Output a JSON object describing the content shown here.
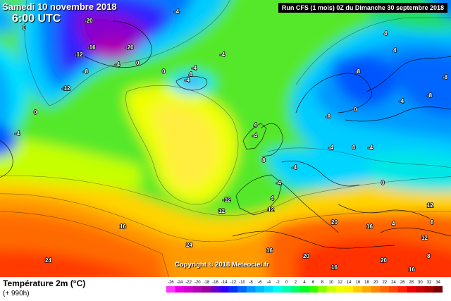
{
  "header": {
    "date": "Samedi 10 novembre 2018",
    "time": "6:00 UTC",
    "run_info": "Run CFS (1 mois) 0Z du Dimanche 30 septembre 2018"
  },
  "copyright": "Copyright © 2018 Meteociel.fr",
  "footer": {
    "title": "Température 2m (°C)",
    "subtitle": "(+ 990h)"
  },
  "legend": {
    "ticks": [
      "-26",
      "-24",
      "-22",
      "-20",
      "-18",
      "-16",
      "-14",
      "-12",
      "-10",
      "-8",
      "-6",
      "-4",
      "-2",
      "0",
      "2",
      "4",
      "6",
      "8",
      "10",
      "12",
      "14",
      "16",
      "18",
      "20",
      "22",
      "24",
      "26",
      "28",
      "30",
      "32",
      "34"
    ],
    "colors": [
      "#ff33ff",
      "#e600e6",
      "#cc00cc",
      "#b300b3",
      "#990099",
      "#6600cc",
      "#3300ff",
      "#0033ff",
      "#0066ff",
      "#0099ff",
      "#00bbff",
      "#00ddff",
      "#00ffee",
      "#00ffaa",
      "#00ff66",
      "#00ff22",
      "#33ff00",
      "#88ff00",
      "#ccff00",
      "#eeff00",
      "#ffee00",
      "#ffcc00",
      "#ffaa00",
      "#ff8800",
      "#ff6600",
      "#ff4400",
      "#ff2200",
      "#ee0000",
      "#cc0000",
      "#aa0000",
      "#770000"
    ]
  },
  "map_labels": [
    "-20",
    "-16",
    "-20",
    "-12",
    "-4",
    "0",
    "-8",
    "-12",
    "-4",
    "0",
    "-4",
    "-4",
    "0",
    "0",
    "-4",
    "4",
    "-4",
    "-8",
    "4",
    "4",
    "-8",
    "-8",
    "-4",
    "0",
    "-8",
    "4",
    "-4",
    "-4",
    "0",
    "-4",
    "-4",
    "8",
    "-4",
    "0",
    "-12",
    "12",
    "16",
    "16",
    "8",
    "4",
    "12",
    "20",
    "16",
    "20",
    "24",
    "24",
    "4",
    "16",
    "20",
    "8",
    "16",
    "12",
    "12"
  ]
}
